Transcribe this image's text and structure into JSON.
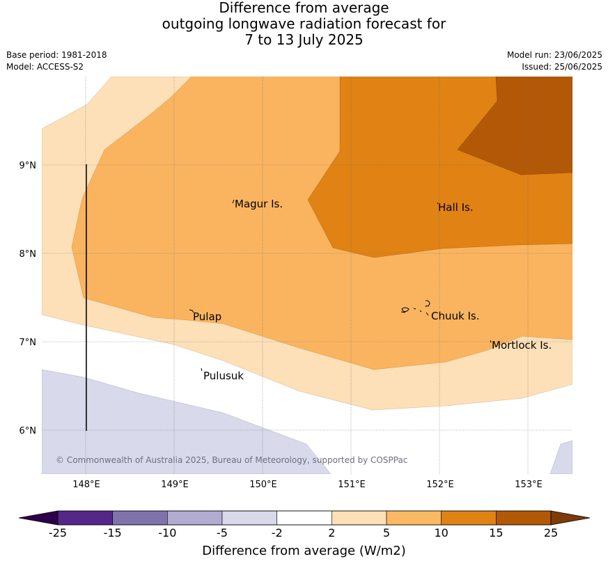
{
  "title": {
    "line1": "Difference from average",
    "line2": "outgoing longwave radiation forecast for",
    "line3": "7 to 13 July 2025"
  },
  "meta": {
    "base_period": "Base period: 1981-2018",
    "model": "Model: ACCESS-S2",
    "model_run": "Model run: 23/06/2025",
    "issued": "Issued: 25/06/2025"
  },
  "map": {
    "lon_ticks": [
      "148°E",
      "149°E",
      "150°E",
      "151°E",
      "152°E",
      "153°E"
    ],
    "lat_ticks": [
      "9°N",
      "8°N",
      "7°N",
      "6°N"
    ],
    "places": [
      "Magur Is.",
      "Hall Is.",
      "Pulap",
      "Chuuk Is.",
      "Mortlock Is.",
      "Pulusuk"
    ],
    "copyright": "© Commonwealth of Australia 2025, Bureau of Meteorology, supported by COSPPac",
    "fill_colors": {
      "2_to_5": "#fde0b8",
      "5_to_10": "#fab45f",
      "10_to_15": "#e08214",
      "15_to_25": "#b35806",
      "-5_to_-2": "#d8daeb"
    }
  },
  "colorbar": {
    "title": "Difference from average (W/m2)",
    "ticks": [
      "-25",
      "-15",
      "-10",
      "-5",
      "-2",
      "2",
      "5",
      "10",
      "15",
      "25"
    ],
    "colors": [
      "#542788",
      "#8073ac",
      "#b2abd2",
      "#d8daeb",
      "#ffffff",
      "#fee0b6",
      "#fdb863",
      "#e08214",
      "#b35806"
    ],
    "under_color": "#2d004b",
    "over_color": "#7f3b08"
  }
}
